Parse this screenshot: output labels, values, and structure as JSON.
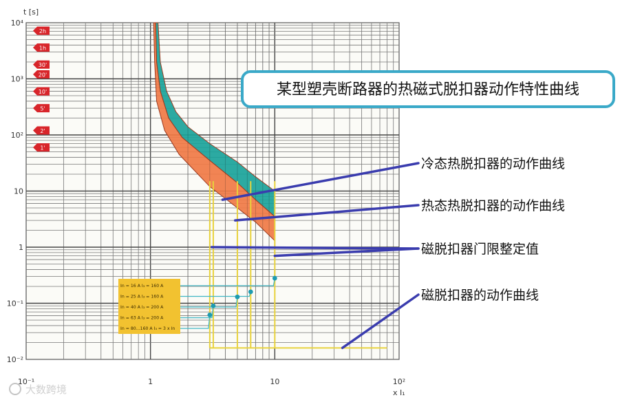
{
  "chart_data": {
    "type": "line",
    "title": "某型塑壳断路器的热磁式脱扣器动作特性曲线",
    "xlabel": "x I₁",
    "ylabel": "t [s]",
    "xscale": "log",
    "yscale": "log",
    "xlim": [
      0.1,
      100
    ],
    "ylim": [
      0.01,
      10000
    ],
    "grid": true,
    "x_ticks": [
      {
        "v": 0.1,
        "label": "10⁻¹"
      },
      {
        "v": 1,
        "label": "1"
      },
      {
        "v": 10,
        "label": "10"
      },
      {
        "v": 100,
        "label": "10²"
      }
    ],
    "y_ticks": [
      {
        "v": 10000,
        "label": "10⁴"
      },
      {
        "v": 1000,
        "label": "10³"
      },
      {
        "v": 100,
        "label": "10²"
      },
      {
        "v": 10,
        "label": "10"
      },
      {
        "v": 1,
        "label": "1"
      },
      {
        "v": 0.1,
        "label": "10⁻¹"
      },
      {
        "v": 0.01,
        "label": "10⁻²"
      }
    ],
    "time_markers": [
      {
        "label": "2h",
        "t": 7200
      },
      {
        "label": "1h",
        "t": 3600
      },
      {
        "label": "30'",
        "t": 1800
      },
      {
        "label": "20'",
        "t": 1200
      },
      {
        "label": "10'",
        "t": 600
      },
      {
        "label": "5'",
        "t": 300
      },
      {
        "label": "2'",
        "t": 120
      },
      {
        "label": "1'",
        "t": 60
      }
    ],
    "series": [
      {
        "name": "冷态热脱扣器的动作曲线",
        "color": "#1aa39a",
        "band_upper": [
          [
            1.15,
            10000
          ],
          [
            1.2,
            2000
          ],
          [
            1.35,
            600
          ],
          [
            1.6,
            260
          ],
          [
            2,
            140
          ],
          [
            3,
            70
          ],
          [
            5,
            33
          ],
          [
            7,
            18
          ],
          [
            10,
            10
          ]
        ],
        "band_lower": [
          [
            1.1,
            10000
          ],
          [
            1.12,
            2000
          ],
          [
            1.2,
            600
          ],
          [
            1.4,
            200
          ],
          [
            1.8,
            90
          ],
          [
            3,
            35
          ],
          [
            5,
            14
          ],
          [
            7,
            7
          ],
          [
            10,
            3.5
          ]
        ]
      },
      {
        "name": "热态热脱扣器的动作曲线",
        "color": "#f07a45",
        "band_upper": [
          [
            1.1,
            10000
          ],
          [
            1.12,
            2000
          ],
          [
            1.2,
            600
          ],
          [
            1.4,
            200
          ],
          [
            1.8,
            90
          ],
          [
            3,
            35
          ],
          [
            5,
            14
          ],
          [
            7,
            7
          ],
          [
            10,
            3.5
          ]
        ],
        "band_lower": [
          [
            1.06,
            10000
          ],
          [
            1.08,
            2000
          ],
          [
            1.12,
            400
          ],
          [
            1.3,
            120
          ],
          [
            1.7,
            45
          ],
          [
            3,
            12
          ],
          [
            5,
            5
          ],
          [
            7,
            2.8
          ],
          [
            10,
            1.3
          ]
        ]
      }
    ],
    "magnetic_thresholds": [
      {
        "label": "In = 16 A I₃ = 160 A",
        "x": 10
      },
      {
        "label": "In = 25 A I₃ = 160 A",
        "x": 6.4
      },
      {
        "label": "In = 40 A I₃ = 200 A",
        "x": 5
      },
      {
        "label": "In = 63 A I₃ = 200 A",
        "x": 3.2
      },
      {
        "label": "In = 80...160 A I₃ = 3 x In",
        "x": 3
      }
    ],
    "magnetic_line_color": "#e8d23c",
    "legend_box_color": "#f2c230",
    "annotations": [
      {
        "label": "冷态热脱扣器的动作曲线",
        "points_to": [
          3.8,
          7
        ]
      },
      {
        "label": "热态热脱扣器的动作曲线",
        "points_to": [
          4.8,
          3
        ]
      },
      {
        "label": "磁脱扣器门限整定值",
        "points_to": [
          [
            3.1,
            1
          ],
          [
            10,
            0.7
          ]
        ]
      },
      {
        "label": "磁脱扣器的动作曲线",
        "points_to": [
          35,
          0.016
        ]
      }
    ],
    "annotation_arrow_color": "#3a3cae"
  },
  "watermark": "大数跨境"
}
